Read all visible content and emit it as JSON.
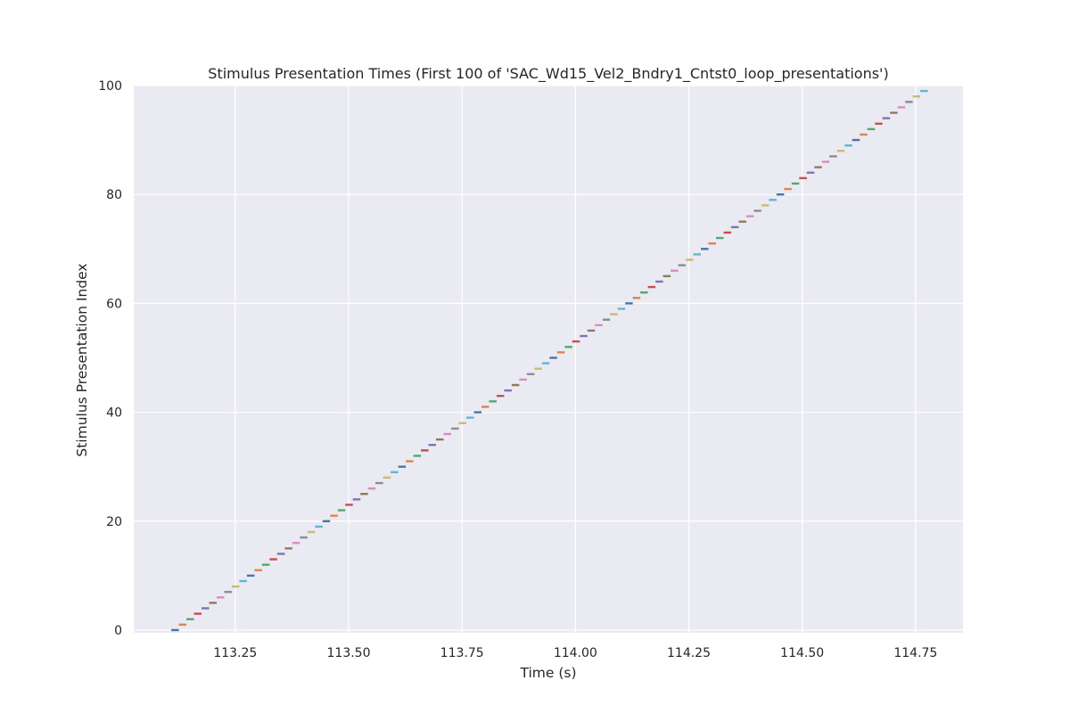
{
  "chart_data": {
    "type": "line",
    "title": "Stimulus Presentation Times (First 100 of 'SAC_Wd15_Vel2_Bndry1_Cntst0_loop_presentations')",
    "xlabel": "Time (s)",
    "ylabel": "Stimulus Presentation Index",
    "xlim": [
      113.0262,
      114.8545
    ],
    "ylim": [
      -0.5,
      100
    ],
    "xticks": [
      113.25,
      113.5,
      113.75,
      114.0,
      114.25,
      114.5,
      114.75
    ],
    "xtick_labels": [
      "113.25",
      "113.50",
      "113.75",
      "114.00",
      "114.25",
      "114.50",
      "114.75"
    ],
    "yticks": [
      0,
      20,
      40,
      60,
      80,
      100
    ],
    "ytick_labels": [
      "0",
      "20",
      "40",
      "60",
      "80",
      "100"
    ],
    "grid": true,
    "background": "#eaeaf2",
    "grid_color": "#ffffff",
    "segment_start": 113.1089,
    "segment_step": 0.016681,
    "segment_duration": 0.0167,
    "count": 100,
    "series_colors": [
      "#4c72b0",
      "#dd8452",
      "#55a868",
      "#c44e52",
      "#8172b3",
      "#937860",
      "#da8bc3",
      "#8c8c8c",
      "#ccb974",
      "#64b5cd"
    ]
  }
}
